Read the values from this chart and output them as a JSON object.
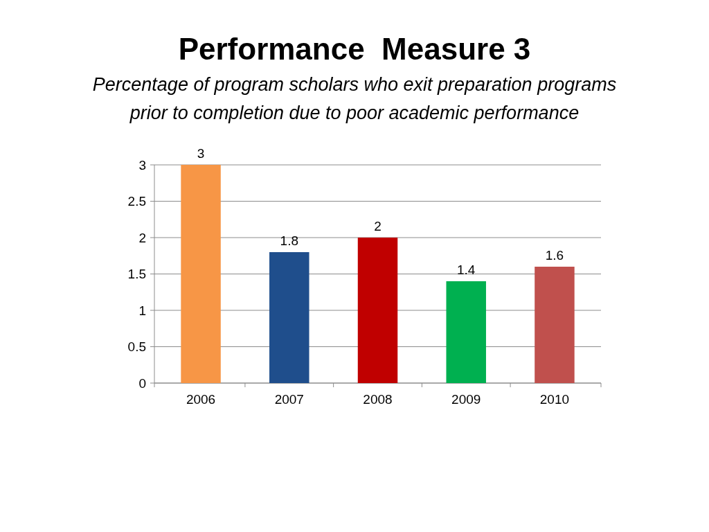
{
  "chart_data": {
    "type": "bar",
    "title": "Performance  Measure 3",
    "subtitle": "Percentage of program scholars who exit preparation programs prior to completion due to poor academic performance",
    "categories": [
      "2006",
      "2007",
      "2008",
      "2009",
      "2010"
    ],
    "values": [
      3,
      1.8,
      2,
      1.4,
      1.6
    ],
    "colors": [
      "#f79646",
      "#1f4e8c",
      "#c00000",
      "#00b050",
      "#c0504d"
    ],
    "ylim": [
      0,
      3
    ],
    "yticks": [
      0,
      0.5,
      1,
      1.5,
      2,
      2.5,
      3
    ],
    "grid": "y",
    "data_labels": true
  }
}
